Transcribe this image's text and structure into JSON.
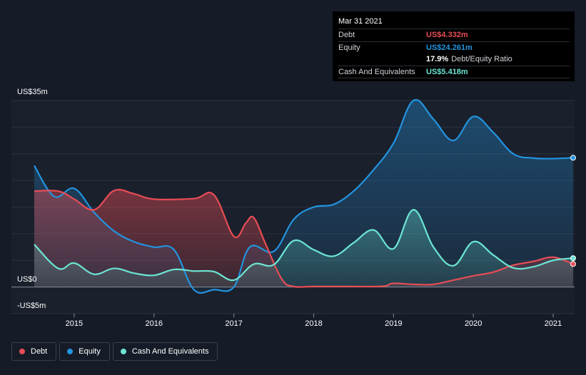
{
  "tooltip": {
    "date": "Mar 31 2021",
    "rows": [
      {
        "name": "Debt",
        "value": "US$4.332m",
        "color": "#e64d55"
      },
      {
        "name": "Equity",
        "value": "US$24.261m",
        "color": "#2394df"
      },
      {
        "name": "",
        "value": "17.9%",
        "note": "Debt/Equity Ratio",
        "color": "#ffffff"
      },
      {
        "name": "Cash And Equivalents",
        "value": "US$5.418m",
        "color": "#6ce5d3"
      }
    ]
  },
  "chart_data": {
    "type": "area",
    "y_axis_labels": [
      "US$35m",
      "US$0",
      "-US$5m"
    ],
    "x_tick_labels": [
      "2015",
      "2016",
      "2017",
      "2018",
      "2019",
      "2020",
      "2021"
    ],
    "ylim": [
      -5,
      35
    ],
    "xlim": [
      2014.5,
      2021.25
    ],
    "grid": true,
    "legend_position": "bottom-left",
    "series": [
      {
        "name": "Debt",
        "color": "#e64d55",
        "x": [
          2014.5,
          2014.8,
          2015.0,
          2015.25,
          2015.5,
          2015.75,
          2016.0,
          2016.5,
          2016.75,
          2017.0,
          2017.15,
          2017.25,
          2017.4,
          2017.6,
          2017.75,
          2018.0,
          2018.5,
          2018.75,
          2018.9,
          2019.0,
          2019.25,
          2019.5,
          2019.75,
          2020.0,
          2020.25,
          2020.5,
          2020.75,
          2021.0,
          2021.25
        ],
        "values": [
          18.0,
          18.0,
          16.5,
          14.5,
          18.1,
          17.5,
          16.5,
          16.6,
          17.3,
          9.5,
          12.0,
          13.0,
          8.0,
          1.5,
          0.1,
          0.1,
          0.1,
          0.1,
          0.2,
          0.7,
          0.5,
          0.5,
          1.3,
          2.1,
          2.8,
          4.1,
          4.8,
          5.6,
          4.332
        ]
      },
      {
        "name": "Equity",
        "color": "#2394df",
        "x": [
          2014.5,
          2014.75,
          2015.0,
          2015.25,
          2015.5,
          2015.75,
          2016.0,
          2016.25,
          2016.5,
          2016.75,
          2017.0,
          2017.2,
          2017.5,
          2017.75,
          2018.0,
          2018.25,
          2018.5,
          2018.75,
          2019.0,
          2019.25,
          2019.5,
          2019.75,
          2020.0,
          2020.25,
          2020.5,
          2020.75,
          2021.0,
          2021.25
        ],
        "values": [
          22.8,
          17.0,
          18.5,
          14.0,
          10.5,
          8.5,
          7.5,
          7.0,
          -0.5,
          -0.5,
          0.0,
          7.5,
          6.7,
          12.7,
          15.0,
          15.5,
          18.0,
          22.0,
          27.0,
          35.0,
          31.5,
          27.5,
          32.0,
          29.0,
          25.0,
          24.2,
          24.1,
          24.261
        ]
      },
      {
        "name": "Cash And Equivalents",
        "color": "#6ce5d3",
        "x": [
          2014.5,
          2014.8,
          2015.0,
          2015.25,
          2015.5,
          2015.75,
          2016.0,
          2016.25,
          2016.5,
          2016.75,
          2017.0,
          2017.25,
          2017.5,
          2017.75,
          2018.0,
          2018.25,
          2018.5,
          2018.75,
          2019.0,
          2019.25,
          2019.5,
          2019.75,
          2020.0,
          2020.25,
          2020.5,
          2020.75,
          2021.0,
          2021.25
        ],
        "values": [
          8.0,
          3.5,
          4.5,
          2.4,
          3.5,
          2.6,
          2.2,
          3.3,
          3.0,
          2.9,
          1.3,
          4.3,
          4.2,
          8.7,
          7.0,
          5.8,
          8.3,
          10.7,
          7.2,
          14.5,
          7.5,
          4.0,
          8.5,
          6.0,
          3.6,
          3.8,
          5.0,
          5.418
        ]
      }
    ]
  },
  "legend": {
    "items": [
      {
        "label": "Debt",
        "color": "#e64d55"
      },
      {
        "label": "Equity",
        "color": "#2394df"
      },
      {
        "label": "Cash And Equivalents",
        "color": "#6ce5d3"
      }
    ]
  }
}
